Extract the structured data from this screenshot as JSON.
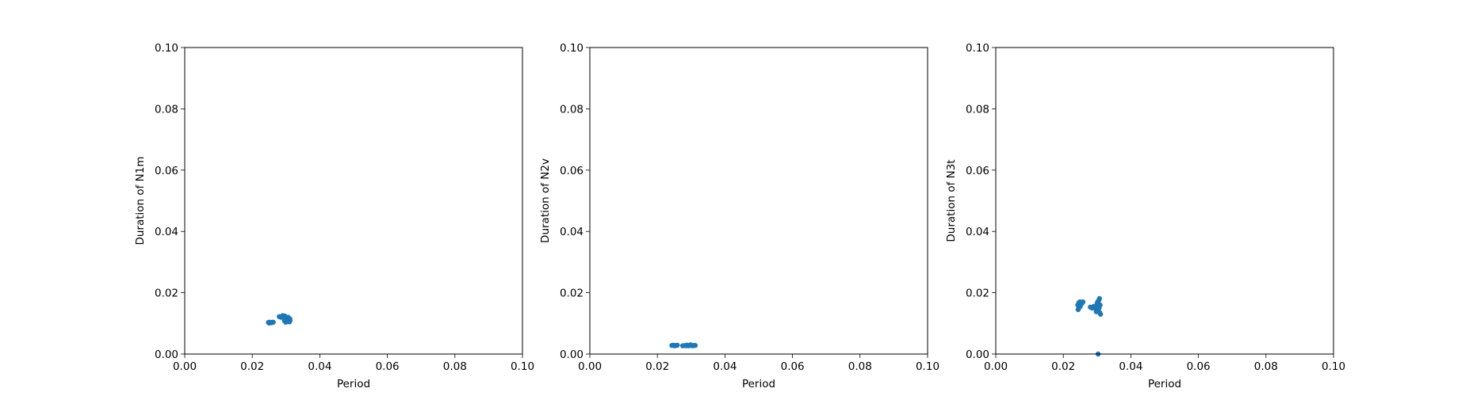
{
  "chart_data": [
    {
      "type": "scatter",
      "xlabel": "Period",
      "ylabel": "Duration of N1m",
      "xlim": [
        0,
        0.1
      ],
      "ylim": [
        0,
        0.1
      ],
      "xticks": [
        "0.00",
        "0.02",
        "0.04",
        "0.06",
        "0.08",
        "0.10"
      ],
      "yticks": [
        "0.00",
        "0.02",
        "0.04",
        "0.06",
        "0.08",
        "0.10"
      ],
      "color": "#1f77b4",
      "series": [
        {
          "points": [
            [
              0.0248,
              0.0103
            ],
            [
              0.0252,
              0.0104
            ],
            [
              0.0256,
              0.0102
            ],
            [
              0.0259,
              0.0103
            ],
            [
              0.025,
              0.0101
            ],
            [
              0.0262,
              0.0104
            ],
            [
              0.028,
              0.0122
            ],
            [
              0.0285,
              0.012
            ],
            [
              0.029,
              0.0125
            ],
            [
              0.0293,
              0.0121
            ],
            [
              0.0296,
              0.0124
            ],
            [
              0.0299,
              0.0119
            ],
            [
              0.0302,
              0.0116
            ],
            [
              0.0305,
              0.0112
            ],
            [
              0.0308,
              0.0109
            ],
            [
              0.0303,
              0.0106
            ],
            [
              0.0299,
              0.0104
            ],
            [
              0.031,
              0.0105
            ],
            [
              0.0312,
              0.011
            ],
            [
              0.0306,
              0.012
            ],
            [
              0.0295,
              0.0109
            ],
            [
              0.0311,
              0.0115
            ]
          ]
        }
      ]
    },
    {
      "type": "scatter",
      "xlabel": "Period",
      "ylabel": "Duration of N2v",
      "xlim": [
        0,
        0.1
      ],
      "ylim": [
        0,
        0.1
      ],
      "xticks": [
        "0.00",
        "0.02",
        "0.04",
        "0.06",
        "0.08",
        "0.10"
      ],
      "yticks": [
        "0.00",
        "0.02",
        "0.04",
        "0.06",
        "0.08",
        "0.10"
      ],
      "color": "#1f77b4",
      "series": [
        {
          "points": [
            [
              0.0243,
              0.0028
            ],
            [
              0.0247,
              0.0029
            ],
            [
              0.0251,
              0.0027
            ],
            [
              0.0255,
              0.0028
            ],
            [
              0.0259,
              0.0029
            ],
            [
              0.0275,
              0.0027
            ],
            [
              0.0282,
              0.0028
            ],
            [
              0.0288,
              0.0029
            ],
            [
              0.0292,
              0.0027
            ],
            [
              0.0296,
              0.0028
            ],
            [
              0.03,
              0.0029
            ],
            [
              0.0304,
              0.0027
            ],
            [
              0.0308,
              0.0028
            ],
            [
              0.0312,
              0.0028
            ],
            [
              0.0285,
              0.0027
            ],
            [
              0.0298,
              0.003
            ]
          ]
        }
      ]
    },
    {
      "type": "scatter",
      "xlabel": "Period",
      "ylabel": "Duration of N3t",
      "xlim": [
        0,
        0.1
      ],
      "ylim": [
        0,
        0.1
      ],
      "xticks": [
        "0.00",
        "0.02",
        "0.04",
        "0.06",
        "0.08",
        "0.10"
      ],
      "yticks": [
        "0.00",
        "0.02",
        "0.04",
        "0.06",
        "0.08",
        "0.10"
      ],
      "color": "#1f77b4",
      "series": [
        {
          "points": [
            [
              0.0243,
              0.016
            ],
            [
              0.0246,
              0.0167
            ],
            [
              0.0249,
              0.017
            ],
            [
              0.0252,
              0.0168
            ],
            [
              0.0255,
              0.0165
            ],
            [
              0.0246,
              0.015
            ],
            [
              0.025,
              0.0155
            ],
            [
              0.0244,
              0.0145
            ],
            [
              0.0258,
              0.017
            ],
            [
              0.028,
              0.0153
            ],
            [
              0.0285,
              0.015
            ],
            [
              0.029,
              0.0155
            ],
            [
              0.0295,
              0.0148
            ],
            [
              0.0298,
              0.0152
            ],
            [
              0.03,
              0.0165
            ],
            [
              0.0302,
              0.017
            ],
            [
              0.0305,
              0.0175
            ],
            [
              0.0307,
              0.0181
            ],
            [
              0.0304,
              0.016
            ],
            [
              0.0306,
              0.015
            ],
            [
              0.0303,
              0.014
            ],
            [
              0.0308,
              0.0135
            ],
            [
              0.031,
              0.013
            ],
            [
              0.0301,
              0.0145
            ],
            [
              0.0309,
              0.016
            ],
            [
              0.0298,
              0.0138
            ],
            [
              0.0303,
              0.0
            ]
          ]
        }
      ]
    }
  ]
}
